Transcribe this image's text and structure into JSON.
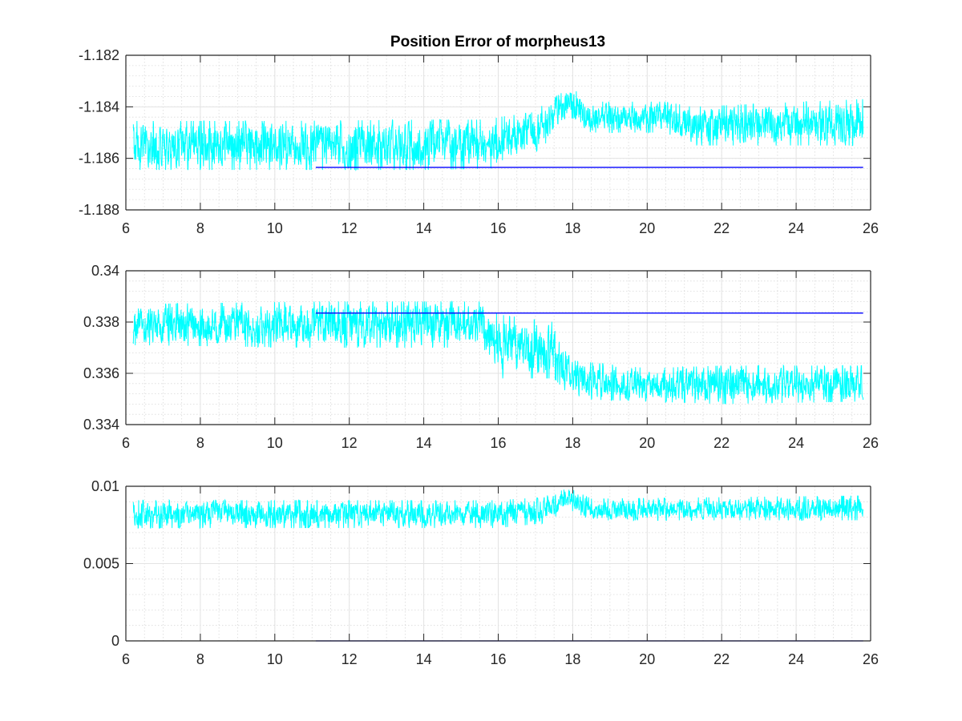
{
  "figure": {
    "title": "Position Error of morpheus13"
  },
  "chart_data": [
    {
      "type": "line",
      "title": "Position Error of morpheus13",
      "xlim": [
        6,
        26
      ],
      "ylim": [
        -1.188,
        -1.182
      ],
      "xticks": [
        6,
        8,
        10,
        12,
        14,
        16,
        18,
        20,
        22,
        24,
        26
      ],
      "xtick_labels": [
        "6",
        "8",
        "10",
        "12",
        "14",
        "16",
        "18",
        "20",
        "22",
        "24",
        "26"
      ],
      "yticks": [
        -1.188,
        -1.186,
        -1.184,
        -1.182
      ],
      "ytick_labels": [
        "-1.188",
        "-1.186",
        "-1.184",
        "-1.182"
      ],
      "grid": true,
      "minor_grid": true,
      "series": [
        {
          "color": "#00ffff",
          "x_range": [
            6.2,
            25.8
          ],
          "envelope": [
            {
              "x": 6.2,
              "lo": -1.18645,
              "hi": -1.18455
            },
            {
              "x": 10,
              "lo": -1.18645,
              "hi": -1.18455
            },
            {
              "x": 14,
              "lo": -1.18645,
              "hi": -1.1845
            },
            {
              "x": 15.8,
              "lo": -1.1864,
              "hi": -1.1845
            },
            {
              "x": 16,
              "lo": -1.1861,
              "hi": -1.1844
            },
            {
              "x": 17,
              "lo": -1.1859,
              "hi": -1.1842
            },
            {
              "x": 17.8,
              "lo": -1.1845,
              "hi": -1.1831
            },
            {
              "x": 18.5,
              "lo": -1.185,
              "hi": -1.1838
            },
            {
              "x": 20.5,
              "lo": -1.185,
              "hi": -1.1838
            },
            {
              "x": 21.2,
              "lo": -1.1855,
              "hi": -1.184
            },
            {
              "x": 25.8,
              "lo": -1.1855,
              "hi": -1.1837
            }
          ]
        },
        {
          "color": "#0000ff",
          "x": [
            11.1,
            25.8
          ],
          "y": [
            -1.18635,
            -1.18635
          ]
        }
      ]
    },
    {
      "type": "line",
      "xlim": [
        6,
        26
      ],
      "ylim": [
        0.334,
        0.34
      ],
      "xticks": [
        6,
        8,
        10,
        12,
        14,
        16,
        18,
        20,
        22,
        24,
        26
      ],
      "xtick_labels": [
        "6",
        "8",
        "10",
        "12",
        "14",
        "16",
        "18",
        "20",
        "22",
        "24",
        "26"
      ],
      "yticks": [
        0.334,
        0.336,
        0.338,
        0.34
      ],
      "ytick_labels": [
        "0.334",
        "0.336",
        "0.338",
        "0.34"
      ],
      "grid": true,
      "minor_grid": true,
      "series": [
        {
          "color": "#00ffff",
          "x_range": [
            6.2,
            25.8
          ],
          "envelope": [
            {
              "x": 6.2,
              "lo": 0.3371,
              "hi": 0.3387
            },
            {
              "x": 11,
              "lo": 0.337,
              "hi": 0.3388
            },
            {
              "x": 15.5,
              "lo": 0.337,
              "hi": 0.3388
            },
            {
              "x": 16,
              "lo": 0.3358,
              "hi": 0.3383
            },
            {
              "x": 17.5,
              "lo": 0.3358,
              "hi": 0.338
            },
            {
              "x": 18,
              "lo": 0.335,
              "hi": 0.3365
            },
            {
              "x": 20,
              "lo": 0.3349,
              "hi": 0.3362
            },
            {
              "x": 22,
              "lo": 0.3348,
              "hi": 0.3363
            },
            {
              "x": 25.8,
              "lo": 0.3349,
              "hi": 0.3363
            }
          ]
        },
        {
          "color": "#0000ff",
          "x": [
            11.1,
            25.8
          ],
          "y": [
            0.33835,
            0.33835
          ]
        }
      ]
    },
    {
      "type": "line",
      "xlim": [
        6,
        26
      ],
      "ylim": [
        0,
        0.01
      ],
      "xticks": [
        6,
        8,
        10,
        12,
        14,
        16,
        18,
        20,
        22,
        24,
        26
      ],
      "xtick_labels": [
        "6",
        "8",
        "10",
        "12",
        "14",
        "16",
        "18",
        "20",
        "22",
        "24",
        "26"
      ],
      "yticks": [
        0,
        0.005,
        0.01
      ],
      "ytick_labels": [
        "0",
        "0.005",
        "0.01"
      ],
      "grid": true,
      "minor_grid": true,
      "series": [
        {
          "color": "#00ffff",
          "x_range": [
            6.2,
            25.8
          ],
          "envelope": [
            {
              "x": 6.2,
              "lo": 0.0073,
              "hi": 0.0091
            },
            {
              "x": 16,
              "lo": 0.0073,
              "hi": 0.0091
            },
            {
              "x": 17.2,
              "lo": 0.0076,
              "hi": 0.0093
            },
            {
              "x": 17.9,
              "lo": 0.0085,
              "hi": 0.0099
            },
            {
              "x": 18.5,
              "lo": 0.0078,
              "hi": 0.0092
            },
            {
              "x": 25.8,
              "lo": 0.0078,
              "hi": 0.0094
            }
          ]
        },
        {
          "color": "#0000ff",
          "x": [
            11.1,
            25.8
          ],
          "y": [
            0,
            0
          ]
        }
      ]
    }
  ]
}
